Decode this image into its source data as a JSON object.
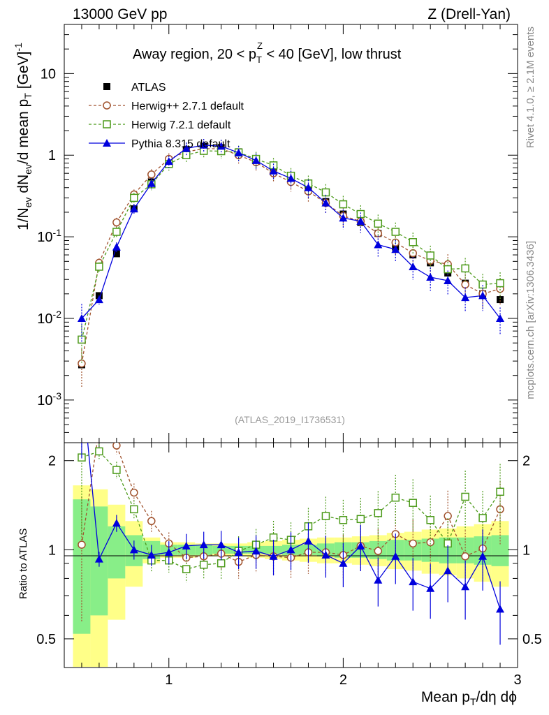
{
  "header": {
    "left": "13000 GeV pp",
    "right": "Z (Drell-Yan)"
  },
  "side_text": {
    "rivet": "Rivet 4.1.0, ≥ 2.1M events",
    "mcplots": "mcplots.cern.ch [arXiv:1306.3436]"
  },
  "chart_data": {
    "type": "scatter",
    "title": "Away region, 20 < p_T^Z < 40 [GeV], low thrust",
    "analysis_label": "(ATLAS_2019_I1736531)",
    "xlabel": "Mean p_T/dη dφ",
    "ylabel": "1/N_ev dN_ev/d mean p_T [GeV]^-1",
    "ratio_ylabel": "Ratio to ATLAS",
    "x_scale": "linear",
    "y_scale": "log",
    "xlim": [
      0.4,
      3.0
    ],
    "ylim": [
      0.0003,
      40
    ],
    "ratio_ylim": [
      0.4,
      2.3
    ],
    "x_ticks": [
      "1",
      "2",
      "3"
    ],
    "y_ticks": [
      "10^-3",
      "10^-2",
      "10^-1",
      "1",
      "10"
    ],
    "ratio_ticks": [
      "0.5",
      "1",
      "2"
    ],
    "legend_position": "top-left",
    "x": [
      0.5,
      0.6,
      0.7,
      0.8,
      0.9,
      1.0,
      1.1,
      1.2,
      1.3,
      1.4,
      1.5,
      1.6,
      1.7,
      1.8,
      1.9,
      2.0,
      2.1,
      2.2,
      2.3,
      2.4,
      2.5,
      2.6,
      2.7,
      2.8,
      2.9
    ],
    "series": [
      {
        "name": "ATLAS",
        "style": "data",
        "color": "#000000",
        "values": [
          0.0027,
          0.019,
          0.062,
          0.22,
          0.47,
          0.86,
          1.17,
          1.28,
          1.24,
          1.1,
          0.86,
          0.63,
          0.5,
          0.37,
          0.27,
          0.19,
          0.15,
          0.11,
          0.075,
          0.06,
          0.048,
          0.036,
          0.027,
          0.02,
          0.017
        ]
      },
      {
        "name": "Herwig++ 2.7.1 default",
        "style": "circle",
        "color": "#a0522d",
        "values": [
          0.0028,
          0.048,
          0.15,
          0.33,
          0.58,
          0.9,
          1.1,
          1.2,
          1.2,
          1.0,
          0.82,
          0.6,
          0.47,
          0.36,
          0.26,
          0.18,
          0.155,
          0.11,
          0.085,
          0.063,
          0.051,
          0.046,
          0.026,
          0.02,
          0.023
        ]
      },
      {
        "name": "Herwig 7.2.1 default",
        "style": "square",
        "color": "#4c9a1a",
        "values": [
          0.0055,
          0.043,
          0.115,
          0.3,
          0.44,
          0.78,
          1.0,
          1.13,
          1.12,
          1.08,
          0.9,
          0.75,
          0.56,
          0.45,
          0.35,
          0.25,
          0.19,
          0.145,
          0.115,
          0.086,
          0.059,
          0.04,
          0.041,
          0.026,
          0.027
        ]
      },
      {
        "name": "Pythia 8.315 default",
        "style": "triangle",
        "color": "#0000dd",
        "values": [
          0.01,
          0.017,
          0.075,
          0.22,
          0.45,
          0.84,
          1.21,
          1.33,
          1.29,
          1.07,
          0.86,
          0.64,
          0.52,
          0.4,
          0.26,
          0.17,
          0.155,
          0.08,
          0.07,
          0.043,
          0.032,
          0.029,
          0.018,
          0.019,
          0.01
        ]
      }
    ],
    "ratio_series": [
      {
        "name": "Herwig++ 2.7.1 default",
        "values": [
          1.04,
          2.55,
          2.25,
          1.56,
          1.25,
          1.05,
          0.94,
          0.95,
          0.97,
          0.91,
          0.96,
          0.95,
          0.94,
          0.98,
          0.98,
          0.96,
          1.03,
          0.99,
          1.13,
          1.05,
          1.06,
          1.3,
          0.95,
          1.01,
          1.37
        ]
      },
      {
        "name": "Herwig 7.2.1 default",
        "values": [
          2.05,
          2.15,
          1.86,
          1.37,
          0.92,
          0.92,
          0.86,
          0.89,
          0.9,
          0.99,
          1.04,
          1.1,
          1.08,
          1.2,
          1.3,
          1.26,
          1.27,
          1.33,
          1.5,
          1.44,
          1.26,
          1.05,
          1.51,
          1.28,
          1.57
        ]
      },
      {
        "name": "Pythia 8.315 default",
        "values": [
          3.7,
          0.93,
          1.23,
          1.0,
          0.96,
          0.98,
          1.03,
          1.04,
          1.04,
          0.98,
          0.99,
          0.95,
          1.0,
          1.07,
          0.96,
          0.9,
          1.03,
          0.79,
          0.95,
          0.78,
          0.74,
          0.85,
          0.75,
          0.95,
          0.63
        ]
      }
    ]
  }
}
